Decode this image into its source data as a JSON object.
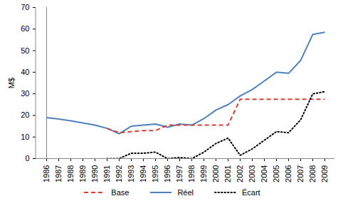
{
  "chart_data": {
    "type": "line",
    "y_label": "M$",
    "categories": [
      "1986",
      "1987",
      "1988",
      "1989",
      "1990",
      "1991",
      "1992",
      "1993",
      "1994",
      "1995",
      "1996",
      "1997",
      "1998",
      "1999",
      "2000",
      "2001",
      "2002",
      "2003",
      "2004",
      "2005",
      "2006",
      "2007",
      "2008",
      "2009"
    ],
    "series": [
      {
        "name": "Base",
        "color": "#e03c31",
        "line_style": "dashed",
        "values": [
          null,
          null,
          null,
          null,
          null,
          14,
          12,
          12.5,
          13,
          13,
          15.5,
          15.5,
          15.5,
          15.5,
          15.5,
          15.5,
          27.5,
          27.5,
          27.5,
          27.5,
          27.5,
          27.5,
          27.5,
          27.5
        ]
      },
      {
        "name": "Réel",
        "color": "#4f81bd",
        "line_style": "solid",
        "values": [
          19,
          18.3,
          17.5,
          16.5,
          15.5,
          14,
          11.5,
          15,
          15.5,
          16,
          14.5,
          16,
          15.5,
          18.5,
          22.5,
          25,
          29,
          32,
          36,
          40,
          39.5,
          45.5,
          57.5,
          58.5
        ]
      },
      {
        "name": "Écart",
        "color": "#000000",
        "line_style": "dotted",
        "values": [
          null,
          null,
          null,
          null,
          null,
          0,
          0,
          2.5,
          2.5,
          3,
          0,
          0.5,
          0,
          3,
          7,
          9.5,
          1.5,
          4.5,
          8.5,
          12.5,
          12,
          18,
          30,
          31
        ]
      }
    ],
    "ylim": [
      0,
      70
    ],
    "yticks": [
      0,
      10,
      20,
      30,
      40,
      50,
      60,
      70
    ],
    "grid": false,
    "legend": "bottom"
  }
}
